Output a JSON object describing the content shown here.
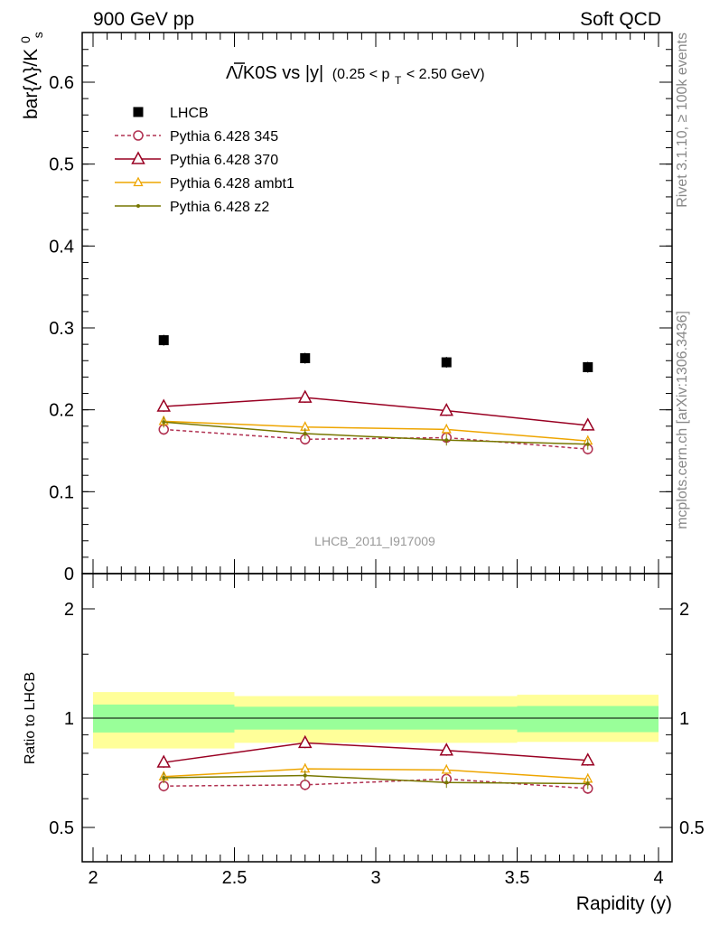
{
  "header": {
    "left": "900 GeV pp",
    "right": "Soft QCD",
    "plot_title_main": "Λ/K0S vs |y|",
    "plot_title_sub": "(0.25 < p",
    "plot_title_sub_idx": "T",
    "plot_title_sub_end": " < 2.50 GeV)",
    "rivet_label": "Rivet 3.1.10, ≥ 100k events",
    "mcplots_label": "mcplots.cern.ch [arXiv:1306.3436]",
    "analysis_id": "LHCB_2011_I917009"
  },
  "chart_data": [
    {
      "type": "scatter",
      "panel": "main",
      "ylabel": "bar{Λ}/K",
      "ylabel_sup": "0",
      "ylabel_sub": "s",
      "ylim": [
        0,
        0.66
      ],
      "yticks": [
        "0",
        "0.1",
        "0.2",
        "0.3",
        "0.4",
        "0.5",
        "0.6"
      ],
      "ytick_values": [
        0,
        0.1,
        0.2,
        0.3,
        0.4,
        0.5,
        0.6
      ],
      "xlim": [
        2,
        4
      ],
      "x": [
        2.25,
        2.75,
        3.25,
        3.75
      ],
      "series": [
        {
          "name": "LHCB",
          "values": [
            0.285,
            0.263,
            0.258,
            0.252
          ],
          "color": "#000000",
          "marker": "square",
          "line": "none"
        },
        {
          "name": "Pythia 6.428 345",
          "values": [
            0.176,
            0.164,
            0.166,
            0.152
          ],
          "color": "#b03050",
          "marker": "circle",
          "line": "dashed"
        },
        {
          "name": "Pythia 6.428 370",
          "values": [
            0.204,
            0.215,
            0.199,
            0.181
          ],
          "color": "#990022",
          "marker": "triangle",
          "line": "solid"
        },
        {
          "name": "Pythia 6.428 ambt1",
          "values": [
            0.186,
            0.179,
            0.176,
            0.162
          ],
          "color": "#eea500",
          "marker": "triangle-small",
          "line": "solid"
        },
        {
          "name": "Pythia 6.428 z2",
          "values": [
            0.185,
            0.171,
            0.163,
            0.158
          ],
          "color": "#777700",
          "marker": "dot",
          "line": "solid"
        }
      ]
    },
    {
      "type": "scatter",
      "panel": "ratio",
      "ylabel": "Ratio to LHCB",
      "ylim": [
        0.4,
        2.3
      ],
      "log_scale": true,
      "yticks": [
        "0.5",
        "1",
        "2"
      ],
      "ytick_values": [
        0.5,
        1,
        2
      ],
      "xlabel": "Rapidity (y)",
      "xlim": [
        2,
        4
      ],
      "xticks": [
        "2",
        "2.5",
        "3",
        "3.5",
        "4"
      ],
      "xtick_values": [
        2,
        2.5,
        3,
        3.5,
        4
      ],
      "x": [
        2.25,
        2.75,
        3.25,
        3.75
      ],
      "bands": [
        {
          "x0": 2.0,
          "x1": 2.5,
          "inner": [
            0.913,
            1.09
          ],
          "outer": [
            0.825,
            1.18
          ]
        },
        {
          "x0": 2.5,
          "x1": 3.0,
          "inner": [
            0.93,
            1.075
          ],
          "outer": [
            0.855,
            1.15
          ]
        },
        {
          "x0": 3.0,
          "x1": 3.5,
          "inner": [
            0.93,
            1.075
          ],
          "outer": [
            0.855,
            1.15
          ]
        },
        {
          "x0": 3.5,
          "x1": 4.0,
          "inner": [
            0.915,
            1.08
          ],
          "outer": [
            0.86,
            1.16
          ]
        }
      ],
      "series": [
        {
          "name": "Pythia 6.428 345",
          "values": [
            0.65,
            0.655,
            0.68,
            0.64
          ],
          "color": "#b03050",
          "marker": "circle",
          "line": "dashed"
        },
        {
          "name": "Pythia 6.428 370",
          "values": [
            0.755,
            0.855,
            0.815,
            0.765
          ],
          "color": "#990022",
          "marker": "triangle",
          "line": "solid"
        },
        {
          "name": "Pythia 6.428 ambt1",
          "values": [
            0.69,
            0.725,
            0.72,
            0.68
          ],
          "color": "#eea500",
          "marker": "triangle-small",
          "line": "solid"
        },
        {
          "name": "Pythia 6.428 z2",
          "values": [
            0.685,
            0.695,
            0.665,
            0.66
          ],
          "color": "#777700",
          "marker": "dot",
          "line": "solid"
        }
      ]
    }
  ]
}
